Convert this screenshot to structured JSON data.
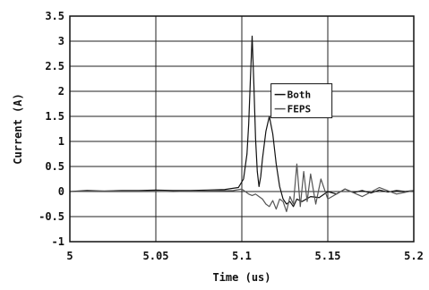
{
  "chart_data": {
    "type": "line",
    "title": "",
    "xlabel": "Time (us)",
    "ylabel": "Current (A)",
    "xlim": [
      5,
      5.2
    ],
    "ylim": [
      -1,
      3.5
    ],
    "grid": true,
    "x_ticks": [
      "5",
      "5.05",
      "5.1",
      "5.15",
      "5.2"
    ],
    "y_ticks": [
      "3.5",
      "3",
      "2.5",
      "2",
      "1.5",
      "1",
      "0.5",
      "0",
      "-0.5",
      "-1"
    ],
    "legend_position": "center-right",
    "series": [
      {
        "name": "Both",
        "color": "#111111",
        "x": [
          5.0,
          5.01,
          5.02,
          5.03,
          5.04,
          5.05,
          5.06,
          5.07,
          5.08,
          5.09,
          5.098,
          5.101,
          5.103,
          5.104,
          5.105,
          5.106,
          5.107,
          5.108,
          5.109,
          5.11,
          5.111,
          5.112,
          5.114,
          5.116,
          5.118,
          5.12,
          5.122,
          5.124,
          5.126,
          5.128,
          5.13,
          5.132,
          5.135,
          5.14,
          5.145,
          5.15,
          5.155,
          5.16,
          5.165,
          5.17,
          5.175,
          5.18,
          5.185,
          5.19,
          5.195,
          5.2
        ],
        "y": [
          0.0,
          0.02,
          0.01,
          0.02,
          0.02,
          0.03,
          0.02,
          0.02,
          0.03,
          0.04,
          0.08,
          0.25,
          0.75,
          1.35,
          2.25,
          3.1,
          2.15,
          1.05,
          0.4,
          0.1,
          0.3,
          0.65,
          1.2,
          1.5,
          1.15,
          0.55,
          0.1,
          -0.15,
          -0.25,
          -0.2,
          -0.3,
          -0.15,
          -0.2,
          -0.1,
          -0.12,
          0.0,
          -0.05,
          0.05,
          -0.02,
          0.02,
          -0.03,
          0.03,
          -0.01,
          0.02,
          0.0,
          0.02
        ]
      },
      {
        "name": "FEPS",
        "color": "#555555",
        "x": [
          5.0,
          5.02,
          5.04,
          5.06,
          5.08,
          5.095,
          5.1,
          5.102,
          5.104,
          5.106,
          5.108,
          5.11,
          5.112,
          5.114,
          5.116,
          5.118,
          5.12,
          5.122,
          5.124,
          5.126,
          5.128,
          5.13,
          5.132,
          5.134,
          5.136,
          5.138,
          5.14,
          5.143,
          5.146,
          5.15,
          5.16,
          5.17,
          5.18,
          5.19,
          5.2
        ],
        "y": [
          0.0,
          0.01,
          0.01,
          0.0,
          0.01,
          0.02,
          0.05,
          0.0,
          -0.05,
          -0.08,
          -0.05,
          -0.1,
          -0.15,
          -0.25,
          -0.3,
          -0.18,
          -0.35,
          -0.15,
          -0.2,
          -0.4,
          -0.1,
          -0.25,
          0.55,
          -0.3,
          0.4,
          -0.2,
          0.35,
          -0.25,
          0.25,
          -0.15,
          0.05,
          -0.1,
          0.08,
          -0.05,
          0.02
        ]
      }
    ]
  }
}
